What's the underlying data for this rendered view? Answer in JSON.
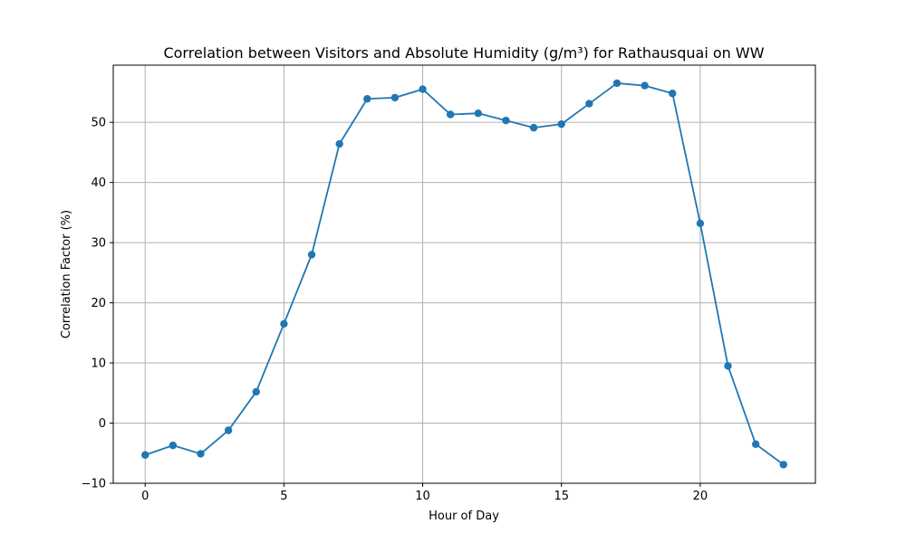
{
  "chart_data": {
    "type": "line",
    "title": "Correlation between Visitors and Absolute Humidity (g/m³) for Rathausquai on WW",
    "xlabel": "Hour of Day",
    "ylabel": "Correlation Factor (%)",
    "xlim": [
      -1.15,
      24.15
    ],
    "ylim": [
      -10,
      59.5
    ],
    "x_ticks": [
      0,
      5,
      10,
      15,
      20
    ],
    "y_ticks": [
      -10,
      0,
      10,
      20,
      30,
      40,
      50
    ],
    "x_tick_labels": [
      "0",
      "5",
      "10",
      "15",
      "20"
    ],
    "y_tick_labels": [
      "−10",
      "0",
      "10",
      "20",
      "30",
      "40",
      "50"
    ],
    "grid": true,
    "legend": "none",
    "series_color": "#1f77b4",
    "grid_color": "#b0b0b0",
    "series": [
      {
        "marker": "circle",
        "x": [
          0,
          1,
          2,
          3,
          4,
          5,
          6,
          7,
          8,
          9,
          10,
          11,
          12,
          13,
          14,
          15,
          16,
          17,
          18,
          19,
          20,
          21,
          22,
          23
        ],
        "values": [
          -5.3,
          -3.7,
          -5.1,
          -1.2,
          5.2,
          16.5,
          28.0,
          46.4,
          53.9,
          54.1,
          55.5,
          51.3,
          51.5,
          50.3,
          49.1,
          49.7,
          53.1,
          56.5,
          56.1,
          54.8,
          33.2,
          9.5,
          -3.5,
          -6.9
        ]
      }
    ]
  }
}
